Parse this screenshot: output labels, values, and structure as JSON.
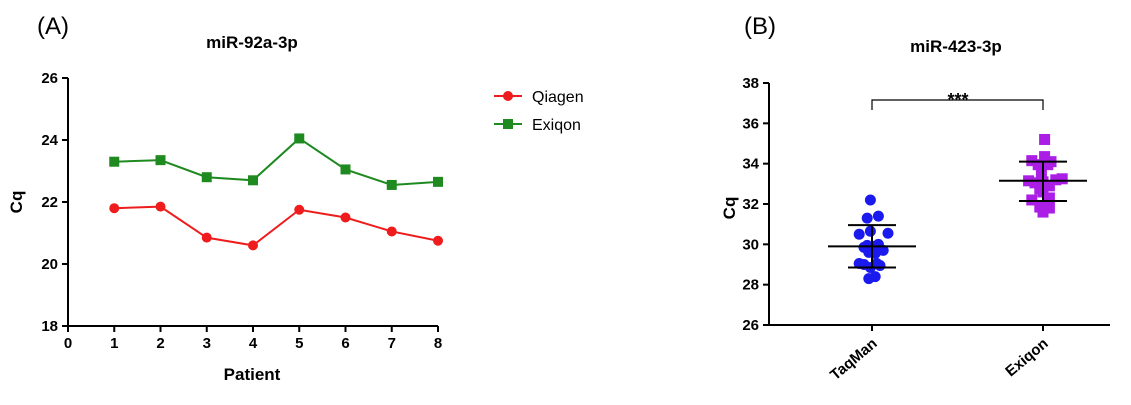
{
  "chart_data": [
    {
      "type": "line",
      "panel_label": "(A)",
      "title": "miR-92a-3p",
      "xlabel": "Patient",
      "ylabel": "Cq",
      "xlim": [
        0,
        8
      ],
      "ylim": [
        18,
        26
      ],
      "xticks": [
        0,
        1,
        2,
        3,
        4,
        5,
        6,
        7,
        8
      ],
      "yticks": [
        18,
        20,
        22,
        24,
        26
      ],
      "legend_position": "right",
      "x": [
        1,
        2,
        3,
        4,
        5,
        6,
        7,
        8
      ],
      "series": [
        {
          "name": "Qiagen",
          "color": "#ee1c1c",
          "marker": "circle",
          "values": [
            21.8,
            21.85,
            20.85,
            20.6,
            21.75,
            21.5,
            21.05,
            20.75
          ]
        },
        {
          "name": "Exiqon",
          "color": "#1f8a1f",
          "marker": "square",
          "values": [
            23.3,
            23.35,
            22.8,
            22.7,
            24.05,
            23.05,
            22.55,
            22.65
          ]
        }
      ]
    },
    {
      "type": "scatter",
      "panel_label": "(B)",
      "title": "miR-423-3p",
      "ylabel": "Cq",
      "ylim": [
        26,
        38
      ],
      "yticks": [
        26,
        28,
        30,
        32,
        34,
        36,
        38
      ],
      "categories": [
        "TaqMan",
        "Exiqon"
      ],
      "significance": "***",
      "groups": [
        {
          "name": "TaqMan",
          "color": "#1a1aee",
          "marker": "circle",
          "mean": 29.9,
          "sd_upper": 30.95,
          "sd_lower": 28.85,
          "points": [
            {
              "x_offset": -0.05,
              "y": 32.2
            },
            {
              "x_offset": -0.4,
              "y": 30.5
            },
            {
              "x_offset": 0.2,
              "y": 31.4
            },
            {
              "x_offset": -0.15,
              "y": 31.3
            },
            {
              "x_offset": 0.5,
              "y": 30.55
            },
            {
              "x_offset": -0.05,
              "y": 30.65
            },
            {
              "x_offset": 0.2,
              "y": 30.0
            },
            {
              "x_offset": -0.25,
              "y": 29.85
            },
            {
              "x_offset": -0.15,
              "y": 29.95
            },
            {
              "x_offset": 0.05,
              "y": 29.9
            },
            {
              "x_offset": -0.1,
              "y": 29.6
            },
            {
              "x_offset": 0.1,
              "y": 29.55
            },
            {
              "x_offset": 0.35,
              "y": 29.7
            },
            {
              "x_offset": -0.25,
              "y": 29.0
            },
            {
              "x_offset": -0.05,
              "y": 28.85
            },
            {
              "x_offset": 0.15,
              "y": 29.05
            },
            {
              "x_offset": 0.25,
              "y": 28.95
            },
            {
              "x_offset": -0.4,
              "y": 29.05
            },
            {
              "x_offset": -0.1,
              "y": 28.3
            },
            {
              "x_offset": 0.1,
              "y": 28.4
            }
          ]
        },
        {
          "name": "Exiqon",
          "color": "#aa1ee6",
          "marker": "square",
          "mean": 33.15,
          "sd_upper": 34.1,
          "sd_lower": 32.15,
          "points": [
            {
              "x_offset": 0.05,
              "y": 35.2
            },
            {
              "x_offset": -0.35,
              "y": 34.15
            },
            {
              "x_offset": 0.05,
              "y": 34.35
            },
            {
              "x_offset": 0.25,
              "y": 34.1
            },
            {
              "x_offset": -0.15,
              "y": 33.95
            },
            {
              "x_offset": 0.15,
              "y": 33.95
            },
            {
              "x_offset": -0.05,
              "y": 33.55
            },
            {
              "x_offset": -0.45,
              "y": 33.15
            },
            {
              "x_offset": -0.25,
              "y": 33.05
            },
            {
              "x_offset": 0.0,
              "y": 33.1
            },
            {
              "x_offset": 0.2,
              "y": 32.9
            },
            {
              "x_offset": 0.4,
              "y": 33.2
            },
            {
              "x_offset": 0.6,
              "y": 33.25
            },
            {
              "x_offset": -0.1,
              "y": 32.75
            },
            {
              "x_offset": 0.0,
              "y": 32.6
            },
            {
              "x_offset": 0.2,
              "y": 32.3
            },
            {
              "x_offset": -0.35,
              "y": 32.2
            },
            {
              "x_offset": -0.1,
              "y": 31.85
            },
            {
              "x_offset": 0.0,
              "y": 31.6
            },
            {
              "x_offset": 0.2,
              "y": 31.8
            }
          ]
        }
      ]
    }
  ]
}
